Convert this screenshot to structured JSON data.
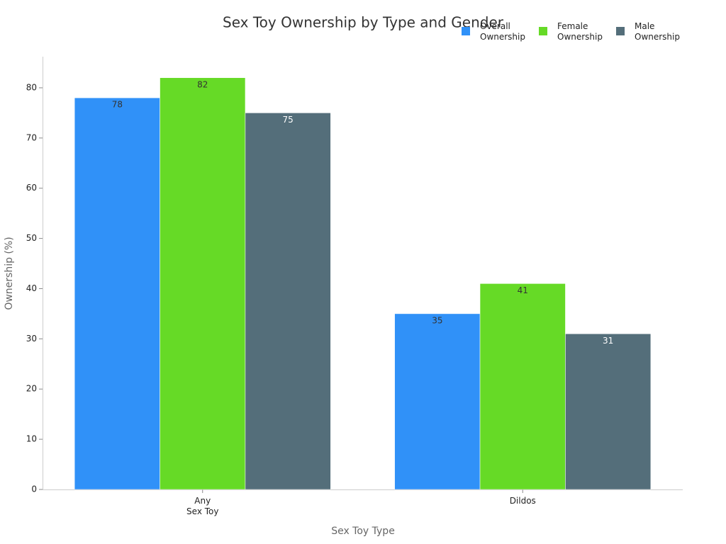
{
  "chart_data": {
    "type": "bar",
    "title": "Sex Toy Ownership by Type and Gender",
    "x_label": "Sex Toy Type",
    "y_label": "Ownership (%)",
    "categories": [
      "Any\nSex Toy",
      "Dildos"
    ],
    "series": [
      {
        "name": "Overall\nOwnership",
        "color": "#3091f8",
        "values": [
          78,
          35
        ]
      },
      {
        "name": "Female\nOwnership",
        "color": "#66da26",
        "values": [
          82,
          41
        ]
      },
      {
        "name": "Male\nOwnership",
        "color": "#546e7a",
        "values": [
          75,
          31
        ]
      }
    ],
    "ylim": [
      0,
      86.2
    ],
    "yticks": [
      0,
      10,
      20,
      30,
      40,
      50,
      60,
      70,
      80
    ],
    "grid": false,
    "legend": "top-right"
  }
}
